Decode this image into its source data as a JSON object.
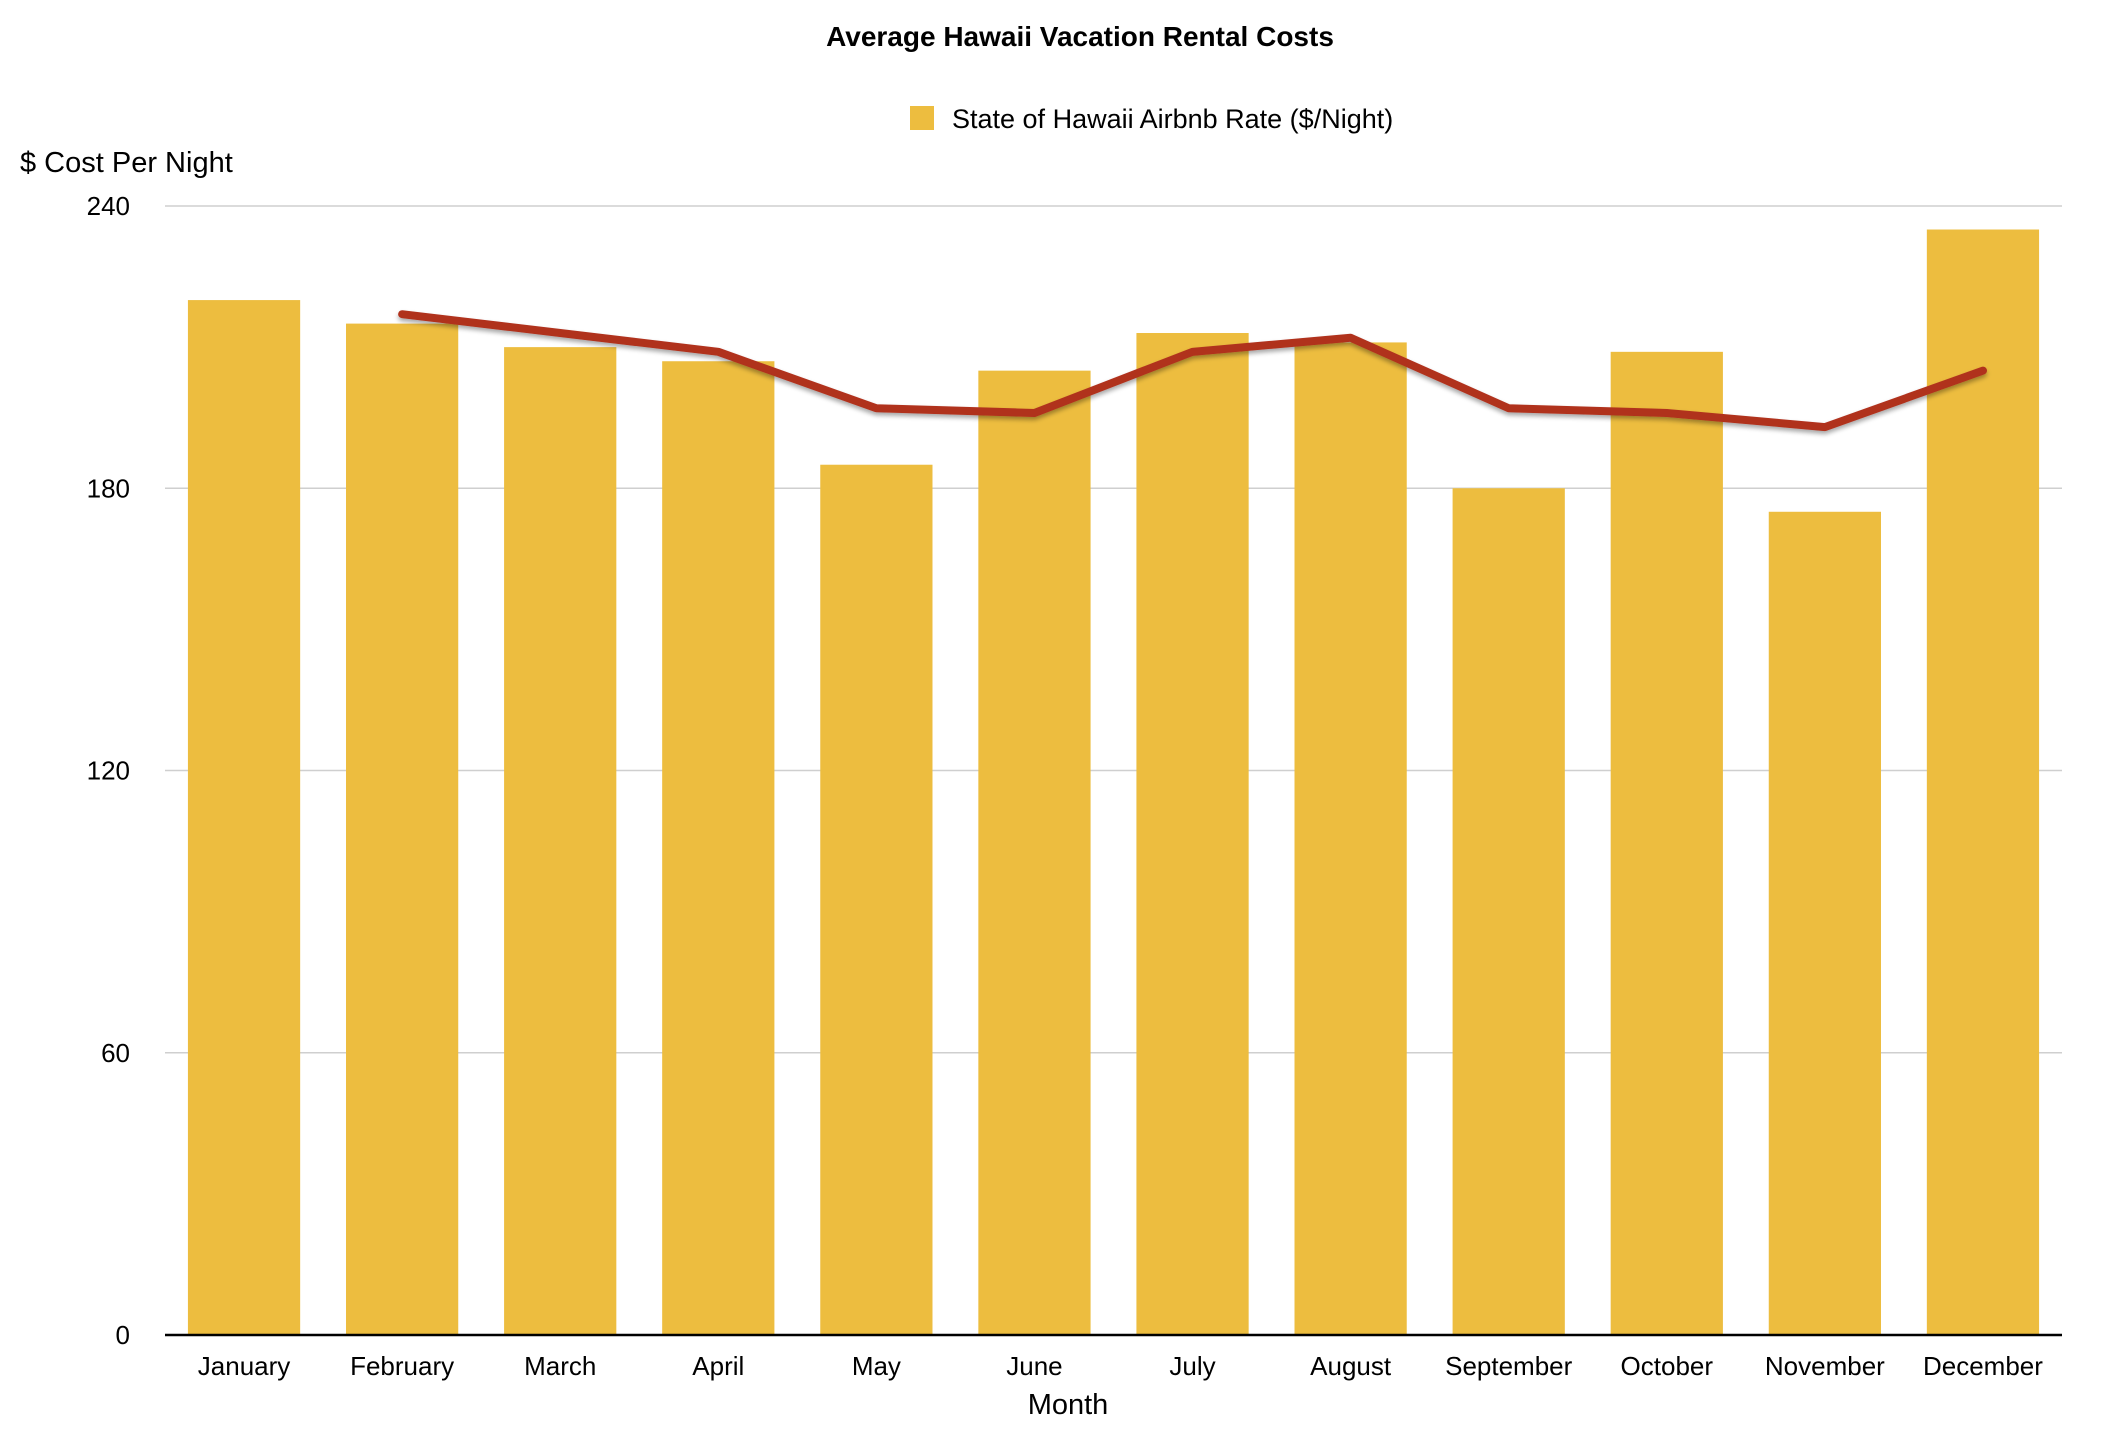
{
  "chart_data": {
    "type": "bar",
    "title": "Average Hawaii Vacation Rental Costs",
    "xlabel": "Month",
    "ylabel": "$ Cost Per Night",
    "categories": [
      "January",
      "February",
      "March",
      "April",
      "May",
      "June",
      "July",
      "August",
      "September",
      "October",
      "November",
      "December"
    ],
    "series": [
      {
        "name": "State of Hawaii Airbnb Rate ($/Night)",
        "type": "bar",
        "color": "#EDBD3F",
        "values": [
          220,
          215,
          210,
          207,
          185,
          205,
          213,
          211,
          180,
          209,
          175,
          235
        ]
      },
      {
        "type": "line",
        "color": "#B0301E",
        "values": [
          null,
          217,
          213,
          209,
          197,
          196,
          209,
          212,
          197,
          196,
          193,
          205
        ]
      }
    ],
    "yticks": [
      0,
      60,
      120,
      180,
      240
    ],
    "ylim": [
      0,
      240
    ],
    "grid": true,
    "legend_position": "top-center"
  }
}
